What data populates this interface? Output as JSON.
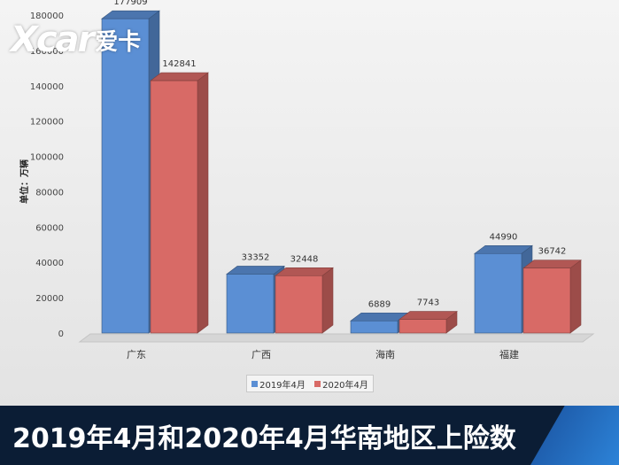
{
  "logo": {
    "mark": "Xcar",
    "cn": "爱卡"
  },
  "banner": {
    "title": "2019年4月和2020年4月华南地区上险数"
  },
  "colors": {
    "series1": "#5b8fd4",
    "series2": "#d86a66"
  },
  "chart_data": {
    "type": "bar",
    "ylabel": "单位：万辆",
    "ylim": [
      0,
      180000
    ],
    "yticks": [
      0,
      20000,
      40000,
      60000,
      80000,
      100000,
      120000,
      140000,
      160000,
      180000
    ],
    "categories": [
      "广东",
      "广西",
      "海南",
      "福建"
    ],
    "series": [
      {
        "name": "2019年4月",
        "values": [
          177909,
          33352,
          6889,
          44990
        ]
      },
      {
        "name": "2020年4月",
        "values": [
          142841,
          32448,
          7743,
          36742
        ]
      }
    ],
    "legend": "bottom"
  }
}
